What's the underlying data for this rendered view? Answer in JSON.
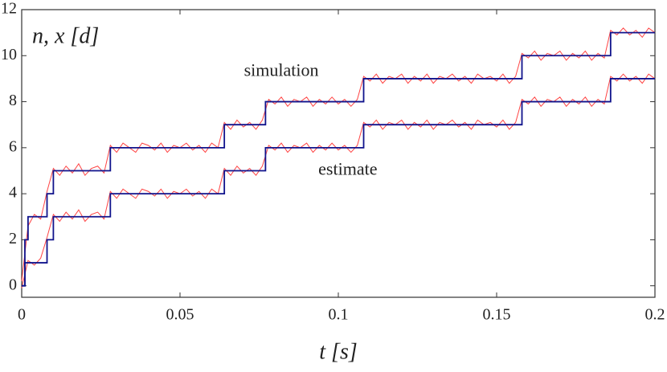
{
  "chart_data": {
    "type": "line",
    "xlabel": "t [s]",
    "ylabel": "n, x [d]",
    "annotations": [
      {
        "text": "simulation",
        "x": 0.082,
        "y": 9.3
      },
      {
        "text": "estimate",
        "x": 0.103,
        "y": 5
      }
    ],
    "xlim": [
      0,
      0.2
    ],
    "ylim": [
      -0.5,
      12
    ],
    "xticks": [
      0,
      0.05,
      0.1,
      0.15,
      0.2
    ],
    "yticks": [
      0,
      2,
      4,
      6,
      8,
      10,
      12
    ],
    "series": [
      {
        "color": "#ff4444",
        "step": false,
        "x": [
          0,
          0.002,
          0.004,
          0.006,
          0.008,
          0.01,
          0.012,
          0.014,
          0.016,
          0.018,
          0.02,
          0.022,
          0.024,
          0.026,
          0.028,
          0.03,
          0.032,
          0.034,
          0.036,
          0.038,
          0.04,
          0.042,
          0.044,
          0.046,
          0.048,
          0.05,
          0.052,
          0.054,
          0.056,
          0.058,
          0.06,
          0.062,
          0.064,
          0.066,
          0.068,
          0.07,
          0.072,
          0.074,
          0.076,
          0.078,
          0.08,
          0.082,
          0.084,
          0.086,
          0.088,
          0.09,
          0.092,
          0.094,
          0.096,
          0.098,
          0.1,
          0.102,
          0.104,
          0.106,
          0.108,
          0.11,
          0.112,
          0.114,
          0.116,
          0.118,
          0.12,
          0.122,
          0.124,
          0.126,
          0.128,
          0.13,
          0.132,
          0.134,
          0.136,
          0.138,
          0.14,
          0.142,
          0.144,
          0.146,
          0.148,
          0.15,
          0.152,
          0.154,
          0.156,
          0.158,
          0.16,
          0.162,
          0.164,
          0.166,
          0.168,
          0.17,
          0.172,
          0.174,
          0.176,
          0.178,
          0.18,
          0.182,
          0.184,
          0.186,
          0.188,
          0.19,
          0.192,
          0.194,
          0.196,
          0.198,
          0.2
        ],
        "values": [
          0.2,
          2.6,
          3.1,
          2.9,
          4.1,
          5.1,
          4.8,
          5.2,
          4.9,
          5.3,
          4.8,
          5.1,
          5.2,
          4.9,
          6.1,
          5.8,
          6.2,
          6.0,
          5.8,
          6.2,
          6.1,
          5.9,
          6.2,
          5.8,
          6.1,
          6.0,
          6.2,
          5.9,
          6.1,
          5.8,
          6.2,
          6.0,
          7.1,
          6.8,
          7.2,
          6.9,
          7.1,
          6.8,
          7.2,
          8.1,
          7.9,
          8.2,
          7.8,
          8.1,
          8.0,
          8.2,
          7.8,
          8.1,
          7.9,
          8.2,
          7.9,
          8.1,
          7.8,
          8.1,
          9.1,
          8.9,
          9.2,
          8.8,
          9.1,
          9.0,
          9.2,
          8.8,
          9.1,
          8.9,
          9.2,
          8.8,
          9.1,
          9.0,
          9.2,
          8.9,
          9.1,
          8.8,
          9.2,
          9.0,
          9.1,
          8.9,
          9.2,
          8.8,
          9.1,
          10.1,
          9.9,
          10.2,
          9.8,
          10.1,
          10.0,
          10.2,
          9.8,
          10.1,
          9.9,
          10.2,
          9.8,
          10.1,
          9.9,
          11.1,
          10.9,
          11.2,
          10.9,
          11.1,
          10.8,
          11.2,
          11.0
        ]
      },
      {
        "color": "#ff4444",
        "step": false,
        "x": [
          0,
          0.002,
          0.004,
          0.006,
          0.008,
          0.01,
          0.012,
          0.014,
          0.016,
          0.018,
          0.02,
          0.022,
          0.024,
          0.026,
          0.028,
          0.03,
          0.032,
          0.034,
          0.036,
          0.038,
          0.04,
          0.042,
          0.044,
          0.046,
          0.048,
          0.05,
          0.052,
          0.054,
          0.056,
          0.058,
          0.06,
          0.062,
          0.064,
          0.066,
          0.068,
          0.07,
          0.072,
          0.074,
          0.076,
          0.078,
          0.08,
          0.082,
          0.084,
          0.086,
          0.088,
          0.09,
          0.092,
          0.094,
          0.096,
          0.098,
          0.1,
          0.102,
          0.104,
          0.106,
          0.108,
          0.11,
          0.112,
          0.114,
          0.116,
          0.118,
          0.12,
          0.122,
          0.124,
          0.126,
          0.128,
          0.13,
          0.132,
          0.134,
          0.136,
          0.138,
          0.14,
          0.142,
          0.144,
          0.146,
          0.148,
          0.15,
          0.152,
          0.154,
          0.156,
          0.158,
          0.16,
          0.162,
          0.164,
          0.166,
          0.168,
          0.17,
          0.172,
          0.174,
          0.176,
          0.178,
          0.18,
          0.182,
          0.184,
          0.186,
          0.188,
          0.19,
          0.192,
          0.194,
          0.196,
          0.198,
          0.2
        ],
        "values": [
          -0.1,
          1.1,
          0.9,
          1.2,
          2.1,
          3.1,
          2.8,
          3.2,
          2.9,
          3.3,
          2.8,
          3.1,
          3.2,
          2.9,
          4.1,
          3.8,
          4.2,
          4.0,
          3.8,
          4.2,
          4.1,
          3.9,
          4.2,
          3.8,
          4.1,
          4.0,
          4.2,
          3.9,
          4.1,
          3.8,
          4.2,
          4.0,
          5.1,
          4.8,
          5.2,
          4.9,
          5.1,
          4.8,
          5.2,
          6.1,
          5.9,
          6.2,
          5.8,
          6.1,
          6.0,
          6.2,
          5.8,
          6.1,
          5.9,
          6.2,
          5.9,
          6.1,
          5.8,
          6.1,
          7.1,
          6.9,
          7.2,
          6.8,
          7.1,
          7.0,
          7.2,
          6.8,
          7.1,
          6.9,
          7.2,
          6.8,
          7.1,
          7.0,
          7.2,
          6.9,
          7.1,
          6.8,
          7.2,
          7.0,
          7.1,
          6.9,
          7.2,
          6.8,
          7.1,
          8.1,
          7.9,
          8.2,
          7.8,
          8.1,
          8.0,
          8.2,
          7.8,
          8.1,
          7.9,
          8.2,
          7.8,
          8.1,
          7.9,
          9.1,
          8.9,
          9.2,
          8.9,
          9.1,
          8.8,
          9.2,
          9.0
        ]
      },
      {
        "color": "#10138c",
        "step": true,
        "x": [
          0,
          0.001,
          0.002,
          0.008,
          0.01,
          0.028,
          0.064,
          0.077,
          0.108,
          0.158,
          0.186,
          0.2
        ],
        "values": [
          0,
          2,
          3,
          4,
          5,
          6,
          7,
          8,
          9,
          10,
          11,
          11
        ]
      },
      {
        "color": "#10138c",
        "step": true,
        "x": [
          0,
          0.001,
          0.002,
          0.008,
          0.01,
          0.028,
          0.064,
          0.077,
          0.108,
          0.158,
          0.186,
          0.2
        ],
        "values": [
          0,
          1,
          1,
          2,
          3,
          4,
          5,
          6,
          7,
          8,
          9,
          9
        ]
      }
    ]
  }
}
